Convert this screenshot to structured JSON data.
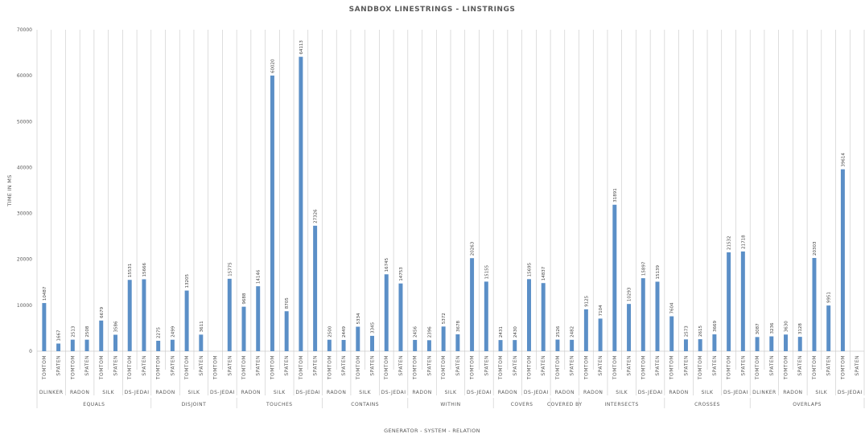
{
  "chart_data": {
    "type": "bar",
    "title": "SANDBOX LINESTRINGS - LINSTRINGS",
    "xlabel": "GENERATOR - SYSTEM - RELATION",
    "ylabel": "TIME IN MS",
    "ylim": [
      0,
      70000
    ],
    "yticks": [
      0,
      10000,
      20000,
      30000,
      40000,
      50000,
      60000,
      70000
    ],
    "grid": false,
    "bar_color": "#5b8fc7",
    "relations": [
      {
        "name": "EQUALS",
        "systems": [
          {
            "name": "DLINKER",
            "bars": [
              {
                "generator": "TOMTOM",
                "value": 10487
              },
              {
                "generator": "SPATEN",
                "value": 1667
              }
            ]
          },
          {
            "name": "RADON",
            "bars": [
              {
                "generator": "TOMTOM",
                "value": 2513
              },
              {
                "generator": "SPATEN",
                "value": 2508
              }
            ]
          },
          {
            "name": "SILK",
            "bars": [
              {
                "generator": "TOMTOM",
                "value": 6679
              },
              {
                "generator": "SPATEN",
                "value": 3586
              }
            ]
          },
          {
            "name": "DS-JEDAI",
            "bars": [
              {
                "generator": "TOMTOM",
                "value": 15531
              },
              {
                "generator": "SPATEN",
                "value": 15666
              }
            ]
          }
        ]
      },
      {
        "name": "DISJOINT",
        "systems": [
          {
            "name": "RADON",
            "bars": [
              {
                "generator": "TOMTOM",
                "value": 2275
              },
              {
                "generator": "SPATEN",
                "value": 2499
              }
            ]
          },
          {
            "name": "SILK",
            "bars": [
              {
                "generator": "TOMTOM",
                "value": 13205
              },
              {
                "generator": "SPATEN",
                "value": 3611
              }
            ]
          },
          {
            "name": "DS-JEDAI",
            "bars": [
              {
                "generator": "TOMTOM",
                "value": null
              },
              {
                "generator": "SPATEN",
                "value": 15775
              }
            ]
          }
        ]
      },
      {
        "name": "TOUCHES",
        "systems": [
          {
            "name": "RADON",
            "bars": [
              {
                "generator": "TOMTOM",
                "value": 9688
              },
              {
                "generator": "SPATEN",
                "value": 14146
              }
            ]
          },
          {
            "name": "SILK",
            "bars": [
              {
                "generator": "TOMTOM",
                "value": 60020
              },
              {
                "generator": "SPATEN",
                "value": 8705
              }
            ]
          },
          {
            "name": "DS-JEDAI",
            "bars": [
              {
                "generator": "TOMTOM",
                "value": 64113
              },
              {
                "generator": "SPATEN",
                "value": 27326
              }
            ]
          }
        ]
      },
      {
        "name": "CONTAINS",
        "systems": [
          {
            "name": "RADON",
            "bars": [
              {
                "generator": "TOMTOM",
                "value": 2500
              },
              {
                "generator": "SPATEN",
                "value": 2449
              }
            ]
          },
          {
            "name": "SILK",
            "bars": [
              {
                "generator": "TOMTOM",
                "value": 5334
              },
              {
                "generator": "SPATEN",
                "value": 3345
              }
            ]
          },
          {
            "name": "DS-JEDAI",
            "bars": [
              {
                "generator": "TOMTOM",
                "value": 16745
              },
              {
                "generator": "SPATEN",
                "value": 14753
              }
            ]
          }
        ]
      },
      {
        "name": "WITHIN",
        "systems": [
          {
            "name": "RADON",
            "bars": [
              {
                "generator": "TOMTOM",
                "value": 2456
              },
              {
                "generator": "SPATEN",
                "value": 2396
              }
            ]
          },
          {
            "name": "SILK",
            "bars": [
              {
                "generator": "TOMTOM",
                "value": 5372
              },
              {
                "generator": "SPATEN",
                "value": 3678
              }
            ]
          },
          {
            "name": "DS-JEDAI",
            "bars": [
              {
                "generator": "TOMTOM",
                "value": 20263
              },
              {
                "generator": "SPATEN",
                "value": 15155
              }
            ]
          }
        ]
      },
      {
        "name": "COVERS",
        "systems": [
          {
            "name": "RADON",
            "bars": [
              {
                "generator": "TOMTOM",
                "value": 2431
              },
              {
                "generator": "SPATEN",
                "value": 2430
              }
            ]
          },
          {
            "name": "DS-JEDAI",
            "bars": [
              {
                "generator": "TOMTOM",
                "value": 15695
              },
              {
                "generator": "SPATEN",
                "value": 14837
              }
            ]
          }
        ]
      },
      {
        "name": "COVERED BY",
        "systems": [
          {
            "name": "RADON",
            "bars": [
              {
                "generator": "TOMTOM",
                "value": 2526
              },
              {
                "generator": "SPATEN",
                "value": 2482
              }
            ]
          }
        ]
      },
      {
        "name": "INTERSECTS",
        "systems": [
          {
            "name": "RADON",
            "bars": [
              {
                "generator": "TOMTOM",
                "value": 9125
              },
              {
                "generator": "SPATEN",
                "value": 7104
              }
            ]
          },
          {
            "name": "SILK",
            "bars": [
              {
                "generator": "TOMTOM",
                "value": 31891
              },
              {
                "generator": "SPATEN",
                "value": 10293
              }
            ]
          },
          {
            "name": "DS-JEDAI",
            "bars": [
              {
                "generator": "TOMTOM",
                "value": 15897
              },
              {
                "generator": "SPATEN",
                "value": 15139
              }
            ]
          }
        ]
      },
      {
        "name": "CROSSES",
        "systems": [
          {
            "name": "RADON",
            "bars": [
              {
                "generator": "TOMTOM",
                "value": 7604
              },
              {
                "generator": "SPATEN",
                "value": 2573
              }
            ]
          },
          {
            "name": "SILK",
            "bars": [
              {
                "generator": "TOMTOM",
                "value": 2615
              },
              {
                "generator": "SPATEN",
                "value": 3669
              }
            ]
          },
          {
            "name": "DS-JEDAI",
            "bars": [
              {
                "generator": "TOMTOM",
                "value": 21532
              },
              {
                "generator": "SPATEN",
                "value": 21718
              }
            ]
          }
        ]
      },
      {
        "name": "OVERLAPS",
        "systems": [
          {
            "name": "DLINKER",
            "bars": [
              {
                "generator": "TOMTOM",
                "value": 3087
              },
              {
                "generator": "SPATEN",
                "value": 3236
              }
            ]
          },
          {
            "name": "RADON",
            "bars": [
              {
                "generator": "TOMTOM",
                "value": 3630
              },
              {
                "generator": "SPATEN",
                "value": 3128
              }
            ]
          },
          {
            "name": "SILK",
            "bars": [
              {
                "generator": "TOMTOM",
                "value": 20303
              },
              {
                "generator": "SPATEN",
                "value": 9951
              }
            ]
          },
          {
            "name": "DS-JEDAI",
            "bars": [
              {
                "generator": "TOMTOM",
                "value": 39614
              },
              {
                "generator": "SPATEN",
                "value": null
              }
            ]
          }
        ]
      }
    ]
  }
}
